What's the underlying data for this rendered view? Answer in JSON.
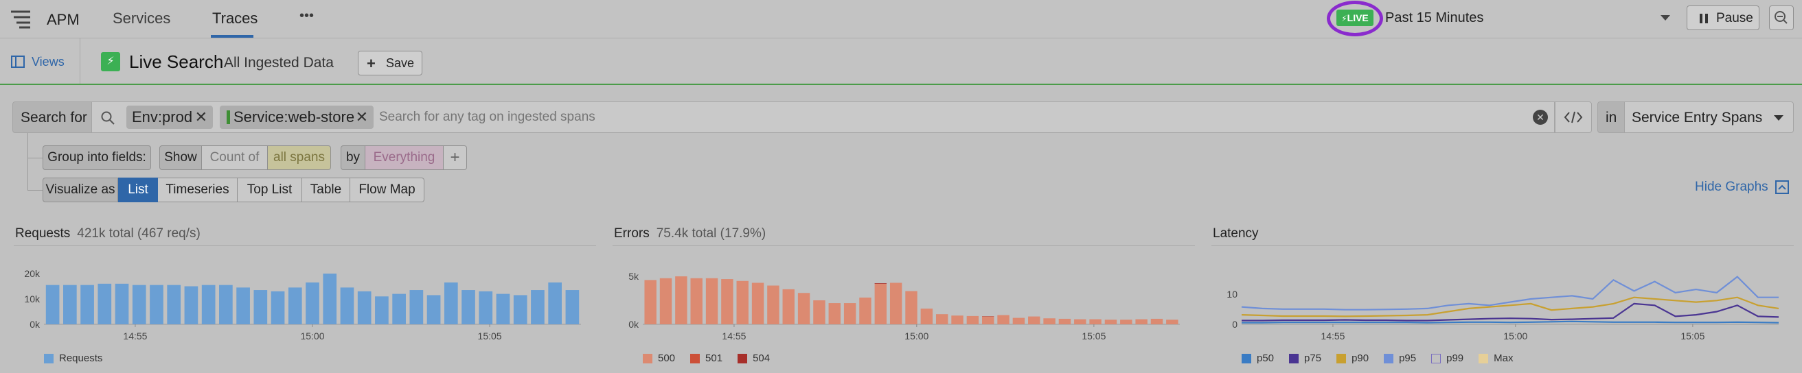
{
  "nav": {
    "app_name": "APM",
    "tabs": [
      {
        "label": "Services",
        "active": false
      },
      {
        "label": "Traces",
        "active": true
      }
    ],
    "more_label": "•••",
    "live_badge": "LIVE",
    "time_range": "Past 15 Minutes",
    "pause_label": "Pause"
  },
  "subheader": {
    "views_label": "Views",
    "title": "Live Search",
    "subtitle": "All Ingested Data",
    "save_label": "Save"
  },
  "search": {
    "label": "Search for",
    "chips": [
      {
        "text": "Env:prod"
      },
      {
        "text": "Service:web-store"
      }
    ],
    "placeholder": "Search for any tag on ingested spans",
    "in_label": "in",
    "scope": "Service Entry Spans"
  },
  "group": {
    "label": "Group into fields:",
    "show": "Show",
    "count_of": "Count of",
    "all_spans": "all spans",
    "by": "by",
    "everything": "Everything",
    "plus": "+"
  },
  "visualize": {
    "label": "Visualize as",
    "options": [
      {
        "label": "List",
        "active": true
      },
      {
        "label": "Timeseries",
        "active": false
      },
      {
        "label": "Top List",
        "active": false
      },
      {
        "label": "Table",
        "active": false
      },
      {
        "label": "Flow Map",
        "active": false
      }
    ],
    "hide_graphs": "Hide Graphs"
  },
  "colors": {
    "requests": "#6a9fd4",
    "errors_500": "#dc8a71",
    "errors_501": "#cc5038",
    "errors_504": "#a72f2a",
    "p50": "#3a7cc4",
    "p75": "#4a3592",
    "p90": "#c8a030",
    "p95": "#6f8fd7",
    "max": "#e6cf98",
    "live": "#3cb054",
    "accent": "#2f66a8"
  },
  "chart_data": [
    {
      "type": "bar",
      "title": "Requests",
      "subtitle": "421k total (467 req/s)",
      "yticks": [
        "20k",
        "10k",
        "0k"
      ],
      "ylim": [
        0,
        20000
      ],
      "xticks": [
        "14:55",
        "15:00",
        "15:05"
      ],
      "series": [
        {
          "name": "Requests",
          "values": [
            15500,
            15500,
            15500,
            16000,
            16000,
            15500,
            15500,
            15500,
            15000,
            15500,
            15500,
            14500,
            13500,
            13000,
            14500,
            16500,
            20000,
            14500,
            13000,
            11000,
            12000,
            13500,
            11500,
            16500,
            13500,
            13000,
            12000,
            11500,
            13500,
            16500,
            13500
          ]
        }
      ]
    },
    {
      "type": "bar",
      "title": "Errors",
      "subtitle": "75.4k total (17.9%)",
      "yticks": [
        "5k",
        "0k"
      ],
      "ylim": [
        0,
        5500
      ],
      "xticks": [
        "14:55",
        "15:00",
        "15:05"
      ],
      "series": [
        {
          "name": "500",
          "values": [
            4800,
            5000,
            5200,
            5000,
            5000,
            4900,
            4700,
            4500,
            4200,
            3800,
            3400,
            2600,
            2300,
            2300,
            2900,
            4400,
            4500,
            3600,
            1700,
            1100,
            950,
            900,
            850,
            1000,
            700,
            850,
            650,
            600,
            550,
            550,
            500,
            500,
            550,
            600,
            500
          ]
        },
        {
          "name": "501",
          "values": [
            0,
            0,
            0,
            0,
            0,
            0,
            0,
            0,
            0,
            0,
            0,
            0,
            0,
            0,
            0,
            0,
            0,
            0,
            0,
            0,
            0,
            0,
            0,
            0,
            0,
            0,
            0,
            0,
            0,
            0,
            0,
            0,
            0,
            0,
            0
          ]
        },
        {
          "name": "504",
          "values": [
            0,
            0,
            0,
            0,
            0,
            0,
            0,
            0,
            0,
            0,
            0,
            0,
            0,
            0,
            0,
            60,
            0,
            0,
            0,
            0,
            0,
            0,
            30,
            0,
            0,
            0,
            0,
            0,
            0,
            0,
            0,
            0,
            0,
            0,
            0
          ]
        }
      ]
    },
    {
      "type": "line",
      "title": "Latency",
      "subtitle": "",
      "yticks": [
        "10",
        "0"
      ],
      "ylim": [
        0,
        16
      ],
      "xticks": [
        "14:55",
        "15:00",
        "15:05"
      ],
      "series": [
        {
          "name": "p50",
          "values": [
            0.5,
            0.5,
            0.6,
            0.6,
            0.6,
            0.6,
            0.6,
            0.6,
            0.6,
            0.5,
            0.6,
            0.7,
            0.7,
            0.6,
            0.7,
            0.8,
            0.9,
            0.8,
            0.7,
            0.7,
            0.7,
            0.6,
            0.6,
            0.6,
            0.7,
            0.6,
            0.5
          ]
        },
        {
          "name": "p75",
          "values": [
            1.2,
            1.2,
            1.3,
            1.3,
            1.3,
            1.4,
            1.3,
            1.3,
            1.2,
            1.2,
            1.4,
            1.6,
            1.8,
            1.9,
            1.8,
            1.5,
            1.6,
            1.8,
            2.0,
            6.5,
            6.0,
            2.5,
            3.0,
            4.0,
            6.0,
            2.5,
            2.3
          ]
        },
        {
          "name": "p90",
          "values": [
            3.0,
            2.8,
            2.6,
            2.6,
            2.6,
            2.5,
            2.6,
            2.7,
            2.8,
            3.0,
            4.0,
            5.0,
            5.5,
            6.0,
            6.5,
            4.5,
            5.0,
            5.5,
            6.5,
            8.5,
            8.0,
            7.5,
            7.0,
            7.5,
            8.5,
            6.0,
            5.0
          ]
        },
        {
          "name": "p95",
          "values": [
            5.5,
            5.0,
            4.8,
            4.8,
            4.8,
            4.6,
            4.6,
            4.7,
            4.8,
            5.0,
            6.0,
            6.5,
            6.0,
            7.0,
            8.0,
            8.5,
            9.0,
            8.0,
            14.0,
            10.5,
            13.5,
            10.0,
            11.0,
            10.0,
            15.0,
            8.5,
            8.5
          ]
        },
        {
          "name": "p99",
          "values": []
        },
        {
          "name": "Max",
          "values": []
        }
      ]
    }
  ]
}
